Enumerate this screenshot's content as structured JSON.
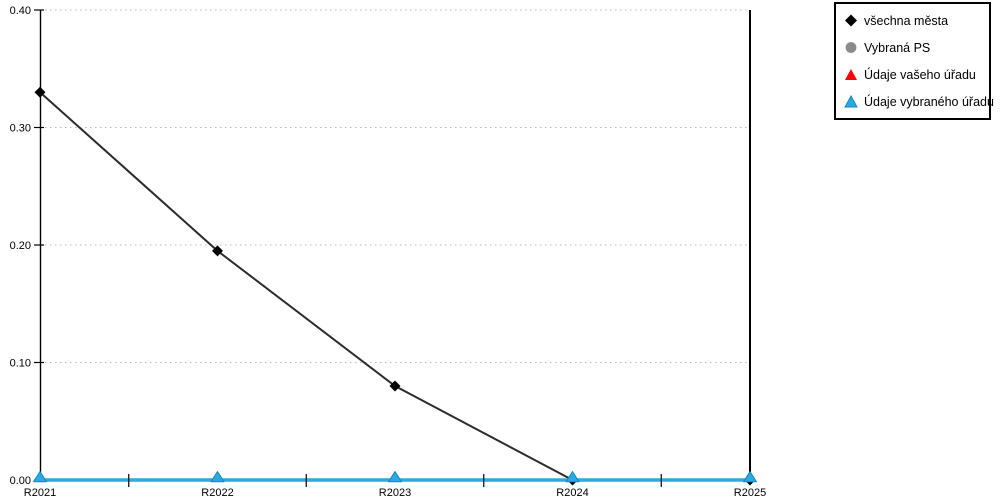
{
  "chart_data": {
    "type": "line",
    "title": "",
    "xlabel": "",
    "ylabel": "",
    "categories": [
      "R2021",
      "R2022",
      "R2023",
      "R2024",
      "R2025"
    ],
    "series": [
      {
        "name": "všechna města",
        "marker": "diamond",
        "color": "#000000",
        "line_color": "#2b2b2b",
        "values": [
          0.33,
          0.195,
          0.08,
          0.0,
          0.0
        ],
        "plotted": true
      },
      {
        "name": "Vybraná PS",
        "marker": "circle",
        "color": "#8a8a8a",
        "values": [],
        "plotted": false
      },
      {
        "name": "Údaje vašeho úřadu",
        "marker": "triangle",
        "color": "#fb0207",
        "values": [],
        "plotted": false
      },
      {
        "name": "Údaje vybraného úřadu",
        "marker": "triangle",
        "color": "#29abe2",
        "marker_stroke": "#1787bd",
        "line_color": "#29abe2",
        "values": [
          0.0,
          0.0,
          0.0,
          0.0,
          0.0
        ],
        "plotted": true
      }
    ],
    "ylim": [
      0,
      0.4
    ],
    "ytick_values": [
      0,
      0.1,
      0.2,
      0.3,
      0.4
    ],
    "ytick_labels": [
      "0.00",
      "0.10",
      "0.20",
      "0.30",
      "0.40"
    ],
    "grid": "horizontal-dotted",
    "legend_position": "top-right-outside"
  },
  "colors": {
    "background": "#ffffff",
    "axis": "#000000",
    "gridline": "#b8b8b8",
    "text": "#000000",
    "accent_cyan": "#29abe2",
    "accent_red": "#fb0207",
    "accent_gray": "#8a8a8a"
  }
}
